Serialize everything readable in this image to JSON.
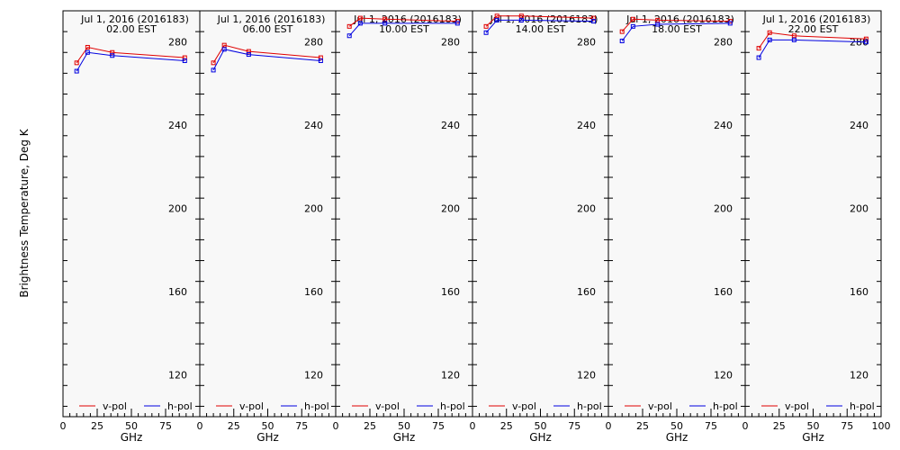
{
  "figure": {
    "ylabel": "Brightness Temperature, Deg K",
    "xlabel": "GHz",
    "date_line": "Jul  1, 2016 (2016183)",
    "colors": {
      "v_pol": "#e00000",
      "h_pol": "#0000e0",
      "panel_bg": "#f8f8f8"
    }
  },
  "chart_data": [
    {
      "type": "line",
      "title": "Jul  1, 2016 (2016183)",
      "subtitle": "02.00 EST",
      "xlabel": "GHz",
      "ylabel": "Brightness Temperature, Deg K",
      "x": [
        10,
        18,
        36,
        89
      ],
      "xlim": [
        0,
        100
      ],
      "ylim": [
        100,
        295
      ],
      "series": [
        {
          "name": "v-pol",
          "values": [
            270,
            277.5,
            275,
            272.5
          ]
        },
        {
          "name": "h-pol",
          "values": [
            266,
            275,
            273.5,
            271
          ]
        }
      ],
      "legend": "bottom",
      "grid": false
    },
    {
      "type": "line",
      "title": "Jul  1, 2016 (2016183)",
      "subtitle": "06.00 EST",
      "xlabel": "GHz",
      "ylabel": "",
      "x": [
        10,
        18,
        36,
        89
      ],
      "xlim": [
        0,
        100
      ],
      "ylim": [
        100,
        295
      ],
      "series": [
        {
          "name": "v-pol",
          "values": [
            270,
            278.5,
            275.5,
            272.5
          ]
        },
        {
          "name": "h-pol",
          "values": [
            266.5,
            276.5,
            274,
            271
          ]
        }
      ],
      "legend": "bottom",
      "grid": false
    },
    {
      "type": "line",
      "title": "Jul  1, 2016 (2016183)",
      "subtitle": "10.00 EST",
      "xlabel": "GHz",
      "ylabel": "",
      "x": [
        10,
        18,
        36,
        89
      ],
      "xlim": [
        0,
        100
      ],
      "ylim": [
        100,
        295
      ],
      "series": [
        {
          "name": "v-pol",
          "values": [
            287.5,
            291.5,
            291,
            290
          ]
        },
        {
          "name": "h-pol",
          "values": [
            283,
            289,
            289,
            289
          ]
        }
      ],
      "legend": "bottom",
      "grid": false
    },
    {
      "type": "line",
      "title": "Jul  1, 2016 (2016183)",
      "subtitle": "14.00 EST",
      "xlabel": "GHz",
      "ylabel": "",
      "x": [
        10,
        18,
        36,
        89
      ],
      "xlim": [
        0,
        100
      ],
      "ylim": [
        100,
        295
      ],
      "series": [
        {
          "name": "v-pol",
          "values": [
            287.5,
            292.5,
            292.5,
            291.5
          ]
        },
        {
          "name": "h-pol",
          "values": [
            284.5,
            290.5,
            290.5,
            290
          ]
        }
      ],
      "legend": "bottom",
      "grid": false
    },
    {
      "type": "line",
      "title": "Jul  1, 2016 (2016183)",
      "subtitle": "18.00 EST",
      "xlabel": "GHz",
      "ylabel": "",
      "x": [
        10,
        18,
        36,
        89
      ],
      "xlim": [
        0,
        100
      ],
      "ylim": [
        100,
        295
      ],
      "series": [
        {
          "name": "v-pol",
          "values": [
            285,
            291,
            290.5,
            290
          ]
        },
        {
          "name": "h-pol",
          "values": [
            280.5,
            287.5,
            288.5,
            289
          ]
        }
      ],
      "legend": "bottom",
      "grid": false
    },
    {
      "type": "line",
      "title": "Jul  1, 2016 (2016183)",
      "subtitle": "22.00 EST",
      "xlabel": "GHz",
      "ylabel": "",
      "x": [
        10,
        18,
        36,
        89
      ],
      "xlim": [
        0,
        100
      ],
      "ylim": [
        100,
        295
      ],
      "series": [
        {
          "name": "v-pol",
          "values": [
            277,
            284.5,
            283,
            281.5
          ]
        },
        {
          "name": "h-pol",
          "values": [
            272.5,
            281,
            281,
            280
          ]
        }
      ],
      "legend": "bottom",
      "grid": false
    }
  ],
  "axes": {
    "y_ticks": [
      120,
      160,
      200,
      240,
      280
    ],
    "y_minor_step": 10,
    "x_ticks": [
      0,
      25,
      50,
      75
    ],
    "x_ticks_last": [
      0,
      25,
      50,
      75,
      100
    ],
    "x_minor_step": 5
  }
}
